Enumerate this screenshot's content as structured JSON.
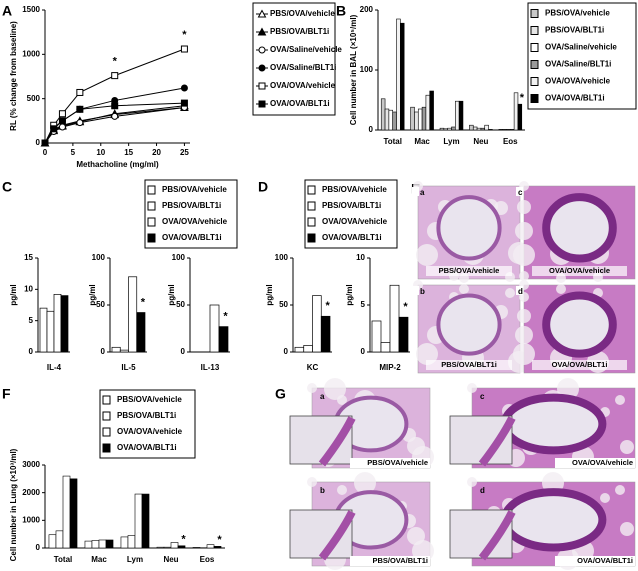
{
  "chart_data": [
    {
      "type": "line",
      "panel": "A",
      "x_label": "Methacholine (mg/ml)",
      "y_label": "RL (% change from baseline)",
      "x": [
        0,
        1.5625,
        3.125,
        6.25,
        12.5,
        25
      ],
      "xlim": [
        0,
        26
      ],
      "xticks": [
        0,
        5,
        10,
        15,
        20,
        25
      ],
      "ylim": [
        0,
        1500
      ],
      "yticks": [
        0,
        500,
        1000,
        1500
      ],
      "series": [
        {
          "name": "PBS/OVA/vehicle",
          "color": "#000000",
          "marker": "triangle",
          "filled": false,
          "values": [
            0,
            150,
            200,
            250,
            320,
            400
          ]
        },
        {
          "name": "PBS/OVA/BLT1i",
          "color": "#000000",
          "marker": "triangle",
          "filled": true,
          "values": [
            0,
            140,
            190,
            240,
            330,
            420
          ]
        },
        {
          "name": "OVA/Saline/vehicle",
          "color": "#000000",
          "marker": "circle",
          "filled": false,
          "values": [
            0,
            130,
            180,
            230,
            300,
            400
          ]
        },
        {
          "name": "OVA/Saline/BLT1i",
          "color": "#000000",
          "marker": "circle",
          "filled": true,
          "values": [
            0,
            170,
            250,
            380,
            480,
            620
          ]
        },
        {
          "name": "OVA/OVA/vehicle",
          "color": "#000000",
          "marker": "square",
          "filled": false,
          "values": [
            0,
            200,
            330,
            570,
            760,
            1060
          ]
        },
        {
          "name": "OVA/OVA/BLT1i",
          "color": "#000000",
          "marker": "square",
          "filled": true,
          "values": [
            0,
            160,
            250,
            380,
            420,
            450
          ]
        }
      ],
      "annotations": [
        "*",
        "*"
      ]
    },
    {
      "type": "bar",
      "panel": "B",
      "y_label": "Cell number in BAL (×10⁵/ml)",
      "categories": [
        "Total",
        "Mac",
        "Lym",
        "Neu",
        "Eos"
      ],
      "ylim": [
        0,
        200
      ],
      "yticks": [
        0,
        100,
        200
      ],
      "series": [
        {
          "name": "PBS/OVA/vehicle",
          "color": "#c8c8c8",
          "values": [
            52,
            38,
            3,
            8,
            1
          ]
        },
        {
          "name": "PBS/OVA/BLT1i",
          "color": "#e6e6e6",
          "values": [
            35,
            30,
            2,
            5,
            1
          ]
        },
        {
          "name": "OVA/Saline/vehicle",
          "color": "#ffffff",
          "values": [
            33,
            35,
            3,
            3,
            1
          ]
        },
        {
          "name": "OVA/Saline/BLT1i",
          "color": "#9a9a9a",
          "values": [
            30,
            38,
            5,
            3,
            1
          ]
        },
        {
          "name": "OVA/OVA/vehicle",
          "color": "#f2f2f2",
          "values": [
            185,
            58,
            48,
            8,
            62
          ]
        },
        {
          "name": "OVA/OVA/BLT1i",
          "color": "#000000",
          "values": [
            178,
            65,
            48,
            1,
            43
          ]
        }
      ],
      "annotations": [
        "*"
      ]
    },
    {
      "type": "bar-panels",
      "panel": "C",
      "y_label": "pg/ml",
      "series": [
        {
          "name": "PBS/OVA/vehicle",
          "color": "#ffffff"
        },
        {
          "name": "PBS/OVA/BLT1i",
          "color": "#ffffff"
        },
        {
          "name": "OVA/OVA/vehicle",
          "color": "#ffffff"
        },
        {
          "name": "OVA/OVA/BLT1i",
          "color": "#000000"
        }
      ],
      "subcharts": [
        {
          "category": "IL-4",
          "ylim": [
            0,
            15
          ],
          "yticks": [
            0,
            5,
            10,
            15
          ],
          "values": [
            7,
            6.5,
            9.2,
            9
          ]
        },
        {
          "category": "IL-5",
          "ylim": [
            0,
            100
          ],
          "yticks": [
            0,
            50,
            100
          ],
          "values": [
            5,
            2,
            80,
            42
          ],
          "annotation": "*"
        },
        {
          "category": "IL-13",
          "ylim": [
            0,
            100
          ],
          "yticks": [
            0,
            50,
            100
          ],
          "values": [
            0,
            0,
            50,
            27
          ],
          "annotation": "*"
        }
      ]
    },
    {
      "type": "bar-panels",
      "panel": "D",
      "y_label": "pg/ml",
      "series": [
        {
          "name": "PBS/OVA/vehicle",
          "color": "#ffffff"
        },
        {
          "name": "PBS/OVA/BLT1i",
          "color": "#ffffff"
        },
        {
          "name": "OVA/OVA/vehicle",
          "color": "#ffffff"
        },
        {
          "name": "OVA/OVA/BLT1i",
          "color": "#000000"
        }
      ],
      "subcharts": [
        {
          "category": "KC",
          "ylim": [
            0,
            100
          ],
          "yticks": [
            0,
            50,
            100
          ],
          "values": [
            5,
            7,
            60,
            38
          ],
          "annotation": "*"
        },
        {
          "category": "MIP-2",
          "ylim": [
            0,
            10
          ],
          "yticks": [
            0,
            5,
            10
          ],
          "values": [
            3.3,
            1,
            7.1,
            3.7
          ],
          "annotation": "*"
        }
      ]
    },
    {
      "type": "bar",
      "panel": "F",
      "y_label": "Cell number in Lung (×10³/ml)",
      "categories": [
        "Total",
        "Mac",
        "Lym",
        "Neu",
        "Eos"
      ],
      "ylim": [
        0,
        3000
      ],
      "yticks": [
        0,
        1000,
        2000,
        3000
      ],
      "series": [
        {
          "name": "PBS/OVA/vehicle",
          "color": "#ffffff",
          "values": [
            480,
            250,
            400,
            30,
            20
          ]
        },
        {
          "name": "PBS/OVA/BLT1i",
          "color": "#ffffff",
          "values": [
            620,
            270,
            450,
            30,
            10
          ]
        },
        {
          "name": "OVA/OVA/vehicle",
          "color": "#ffffff",
          "values": [
            2600,
            290,
            1950,
            200,
            120
          ]
        },
        {
          "name": "OVA/OVA/BLT1i",
          "color": "#000000",
          "values": [
            2500,
            290,
            1950,
            80,
            60
          ]
        }
      ],
      "annotations": [
        "*",
        "*"
      ]
    }
  ],
  "images": [
    {
      "panel": "E",
      "items": [
        {
          "letter": "a",
          "caption": "PBS/OVA/vehicle"
        },
        {
          "letter": "b",
          "caption": "PBS/OVA/BLT1i"
        },
        {
          "letter": "c",
          "caption": "OVA/OVA/vehicle"
        },
        {
          "letter": "d",
          "caption": "OVA/OVA/BLT1i"
        }
      ]
    },
    {
      "panel": "G",
      "items": [
        {
          "letter": "a",
          "caption": "PBS/OVA/vehicle"
        },
        {
          "letter": "b",
          "caption": "PBS/OVA/BLT1i"
        },
        {
          "letter": "c",
          "caption": "OVA/OVA/vehicle"
        },
        {
          "letter": "d",
          "caption": "OVA/OVA/BLT1i"
        }
      ]
    }
  ]
}
